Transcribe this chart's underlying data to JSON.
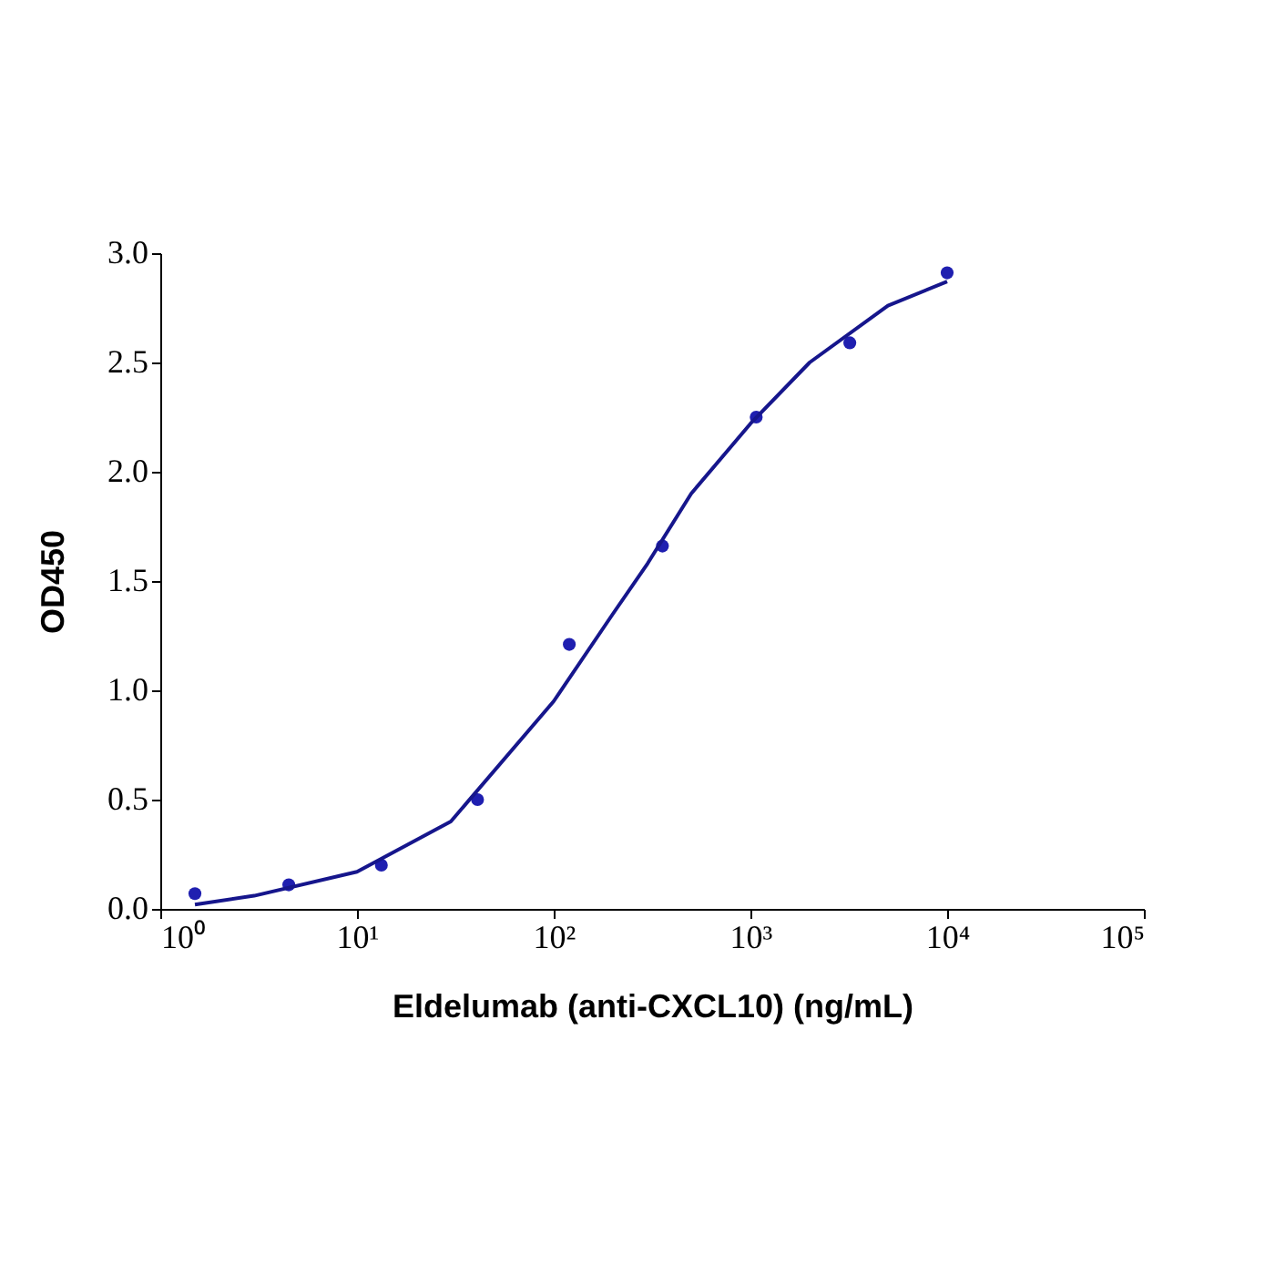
{
  "chart_data": {
    "type": "scatter",
    "xlabel": "Eldelumab (anti-CXCL10) (ng/mL)",
    "ylabel": "OD450",
    "log": "x",
    "grid": false,
    "marker": "circle",
    "xlim": [
      1,
      100000
    ],
    "ylim": [
      0,
      3.0
    ],
    "xticks": [
      {
        "value": 1,
        "label": "10⁰"
      },
      {
        "value": 10,
        "label": "10¹"
      },
      {
        "value": 100,
        "label": "10²"
      },
      {
        "value": 1000,
        "label": "10³"
      },
      {
        "value": 10000,
        "label": "10⁴"
      },
      {
        "value": 100000,
        "label": "10⁵"
      }
    ],
    "yticks": [
      {
        "value": 0,
        "label": "0.0"
      },
      {
        "value": 0.5,
        "label": "0.5"
      },
      {
        "value": 1,
        "label": "1.0"
      },
      {
        "value": 1.5,
        "label": "1.5"
      },
      {
        "value": 2,
        "label": "2.0"
      },
      {
        "value": 2.5,
        "label": "2.5"
      },
      {
        "value": 3,
        "label": "3.0"
      }
    ],
    "series": [
      {
        "color": "#1f1fb0",
        "x": [
          1.5,
          4.5,
          13.3,
          41,
          120,
          357,
          1070,
          3200,
          10000
        ],
        "values": [
          0.07,
          0.11,
          0.2,
          0.5,
          1.21,
          1.66,
          2.25,
          2.59,
          2.91
        ]
      },
      {
        "type": "line",
        "color": "#16168c",
        "line_style": "solid",
        "marker": "none",
        "x": [
          1.5,
          3,
          10,
          30,
          100,
          200,
          300,
          500,
          1000,
          2000,
          5000,
          10000
        ],
        "values": [
          0.02,
          0.06,
          0.17,
          0.4,
          0.95,
          1.35,
          1.58,
          1.9,
          2.22,
          2.5,
          2.76,
          2.87
        ]
      }
    ]
  }
}
